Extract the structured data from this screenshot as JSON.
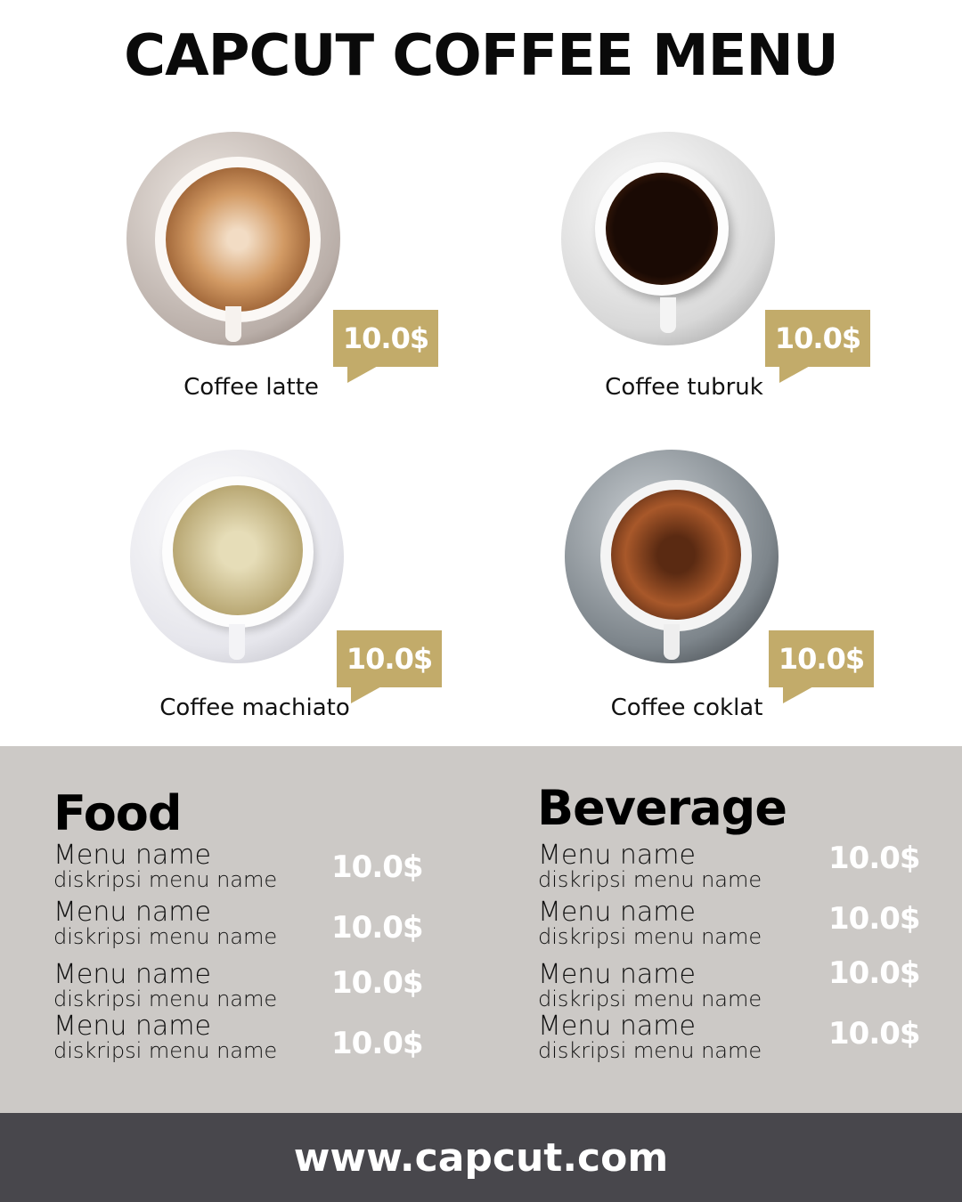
{
  "title": "CAPCUT COFFEE MENU",
  "colors": {
    "accent": "#c2ab6a",
    "panel": "#ccc9c6",
    "footer": "#48474c"
  },
  "featured": [
    {
      "name": "Coffee latte",
      "price": "10.0$"
    },
    {
      "name": "Coffee tubruk",
      "price": "10.0$"
    },
    {
      "name": "Coffee machiato",
      "price": "10.0$"
    },
    {
      "name": "Coffee coklat",
      "price": "10.0$"
    }
  ],
  "food": {
    "heading": "Food",
    "items": [
      {
        "name": "Menu name",
        "desc": "diskripsi menu name",
        "price": "10.0$"
      },
      {
        "name": "Menu name",
        "desc": "diskripsi menu name",
        "price": "10.0$"
      },
      {
        "name": "Menu name",
        "desc": "diskripsi menu name",
        "price": "10.0$"
      },
      {
        "name": "Menu name",
        "desc": "diskripsi menu name",
        "price": "10.0$"
      }
    ]
  },
  "beverage": {
    "heading": "Beverage",
    "items": [
      {
        "name": "Menu name",
        "desc": "diskripsi menu name",
        "price": "10.0$"
      },
      {
        "name": "Menu name",
        "desc": "diskripsi menu name",
        "price": "10.0$"
      },
      {
        "name": "Menu name",
        "desc": "diskripsi menu name",
        "price": "10.0$"
      },
      {
        "name": "Menu name",
        "desc": "diskripsi menu name",
        "price": "10.0$"
      }
    ]
  },
  "footer": "www.capcut.com"
}
